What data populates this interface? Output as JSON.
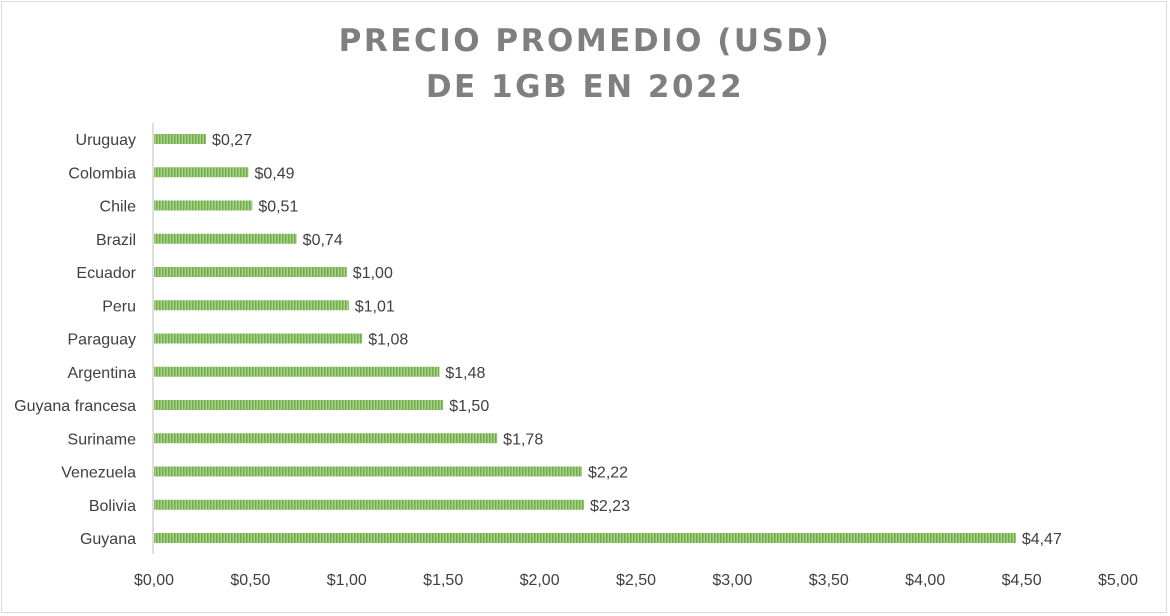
{
  "chart_data": {
    "type": "bar",
    "orientation": "horizontal",
    "title_lines": [
      "PRECIO PROMEDIO (USD)",
      "DE 1GB EN 2022"
    ],
    "categories": [
      "Uruguay",
      "Colombia",
      "Chile",
      "Brazil",
      "Ecuador",
      "Peru",
      "Paraguay",
      "Argentina",
      "Guyana francesa",
      "Suriname",
      "Venezuela",
      "Bolivia",
      "Guyana"
    ],
    "values": [
      0.27,
      0.49,
      0.51,
      0.74,
      1.0,
      1.01,
      1.08,
      1.48,
      1.5,
      1.78,
      2.22,
      2.23,
      4.47
    ],
    "value_labels": [
      "$0,27",
      "$0,49",
      "$0,51",
      "$0,74",
      "$1,00",
      "$1,01",
      "$1,08",
      "$1,48",
      "$1,50",
      "$1,78",
      "$2,22",
      "$2,23",
      "$4,47"
    ],
    "xlim": [
      0,
      5
    ],
    "x_ticks": [
      0,
      0.5,
      1,
      1.5,
      2,
      2.5,
      3,
      3.5,
      4,
      4.5,
      5
    ],
    "x_tick_labels": [
      "$0,00",
      "$0,50",
      "$1,00",
      "$1,50",
      "$2,00",
      "$2,50",
      "$3,00",
      "$3,50",
      "$4,00",
      "$4,50",
      "$5,00"
    ],
    "xlabel": "",
    "ylabel": "",
    "grid": false,
    "legend": "none",
    "bar_color": "#70ad47",
    "bar_stripe_color": "#a9d18e",
    "text_color": "#404040",
    "title_color": "#7f7f7f",
    "axis_color": "#bfbfbf"
  }
}
